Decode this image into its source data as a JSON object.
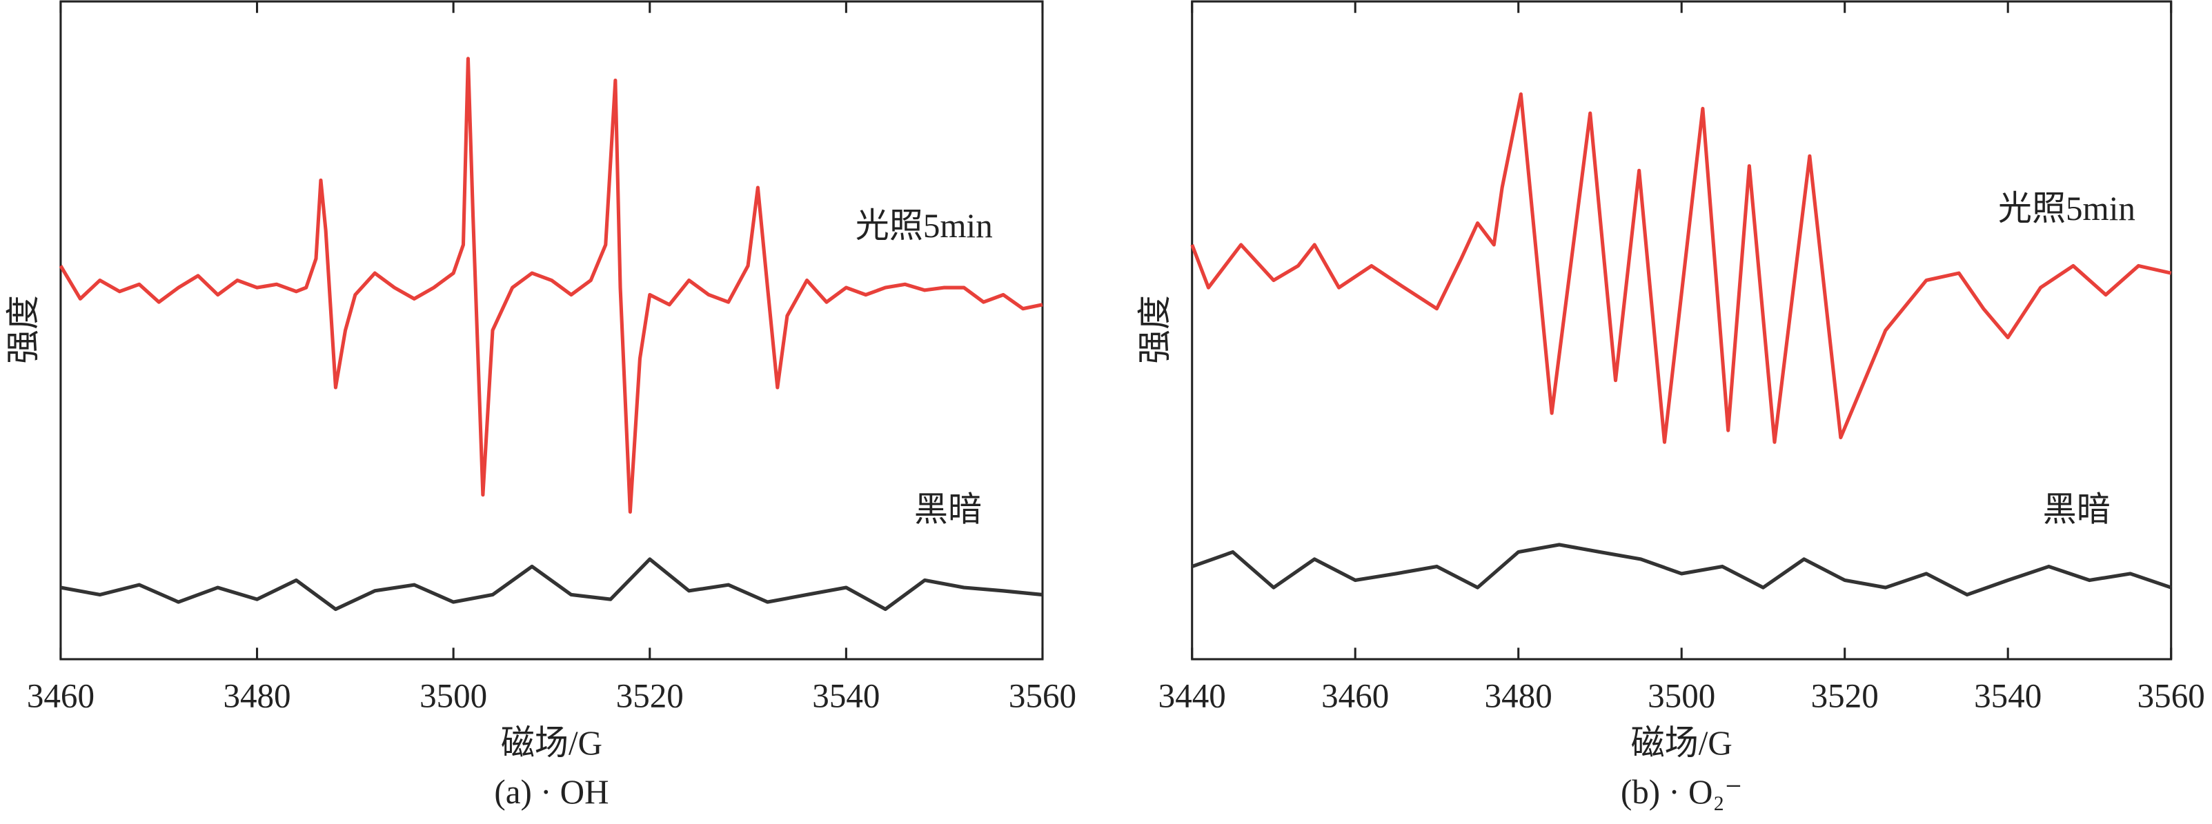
{
  "chart_data": [
    {
      "type": "line",
      "title": "(a) · OH",
      "x_label": "磁场/G",
      "y_label": "强度",
      "xlim": [
        3460,
        3560
      ],
      "ylim": [
        0,
        100
      ],
      "xticks": [
        3460,
        3480,
        3500,
        3520,
        3540,
        3560
      ],
      "series": [
        {
          "name": "光照5min",
          "color": "#e8403a",
          "x": [
            3460,
            3462,
            3464,
            3466,
            3468,
            3470,
            3472,
            3474,
            3476,
            3478,
            3480,
            3482,
            3484,
            3485,
            3486,
            3486.5,
            3487,
            3488,
            3489,
            3490,
            3492,
            3494,
            3496,
            3498,
            3500,
            3501,
            3501.5,
            3502,
            3503,
            3504,
            3506,
            3508,
            3510,
            3512,
            3514,
            3515.5,
            3516.5,
            3517,
            3518,
            3519,
            3520,
            3522,
            3524,
            3526,
            3528,
            3530,
            3531,
            3532,
            3533,
            3534,
            3536,
            3538,
            3540,
            3542,
            3544,
            3546,
            3548,
            3550,
            3552,
            3554,
            3556,
            3558,
            3560
          ],
          "values": [
            59.8,
            54.8,
            57.6,
            55.9,
            57.0,
            54.3,
            56.5,
            58.3,
            55.4,
            57.6,
            56.5,
            57.0,
            55.9,
            56.5,
            60.9,
            72.8,
            65.2,
            41.3,
            50.0,
            55.4,
            58.7,
            56.5,
            54.8,
            56.5,
            58.7,
            63.0,
            91.3,
            67.4,
            25.0,
            50.0,
            56.5,
            58.7,
            57.6,
            55.4,
            57.6,
            63.0,
            88.0,
            56.5,
            22.4,
            45.7,
            55.4,
            53.9,
            57.6,
            55.4,
            54.3,
            59.8,
            71.7,
            56.5,
            41.3,
            52.2,
            57.6,
            54.3,
            56.5,
            55.4,
            56.5,
            57.0,
            56.1,
            56.5,
            56.5,
            54.3,
            55.4,
            53.3,
            53.9
          ]
        },
        {
          "name": "黑暗",
          "color": "#333333",
          "x": [
            3460,
            3464,
            3468,
            3472,
            3476,
            3480,
            3484,
            3488,
            3492,
            3496,
            3500,
            3504,
            3508,
            3512,
            3516,
            3520,
            3524,
            3528,
            3532,
            3536,
            3540,
            3544,
            3548,
            3552,
            3556,
            3560
          ],
          "values": [
            10.9,
            9.8,
            11.3,
            8.7,
            10.9,
            9.1,
            12.0,
            7.6,
            10.4,
            11.3,
            8.7,
            9.8,
            14.1,
            9.8,
            9.1,
            15.2,
            10.4,
            11.3,
            8.7,
            9.8,
            10.9,
            7.6,
            12.0,
            10.9,
            10.4,
            9.8
          ]
        }
      ]
    },
    {
      "type": "line",
      "title": "(b) · O₂⁻",
      "x_label": "磁场/G",
      "y_label": "强度",
      "xlim": [
        3440,
        3560
      ],
      "ylim": [
        0,
        100
      ],
      "xticks": [
        3440,
        3460,
        3480,
        3500,
        3520,
        3540,
        3560
      ],
      "series": [
        {
          "name": "光照5min",
          "color": "#e8403a",
          "x": [
            3440,
            3442,
            3446,
            3450,
            3453,
            3455,
            3458,
            3462,
            3466,
            3470,
            3473,
            3475,
            3477,
            3478,
            3480.3,
            3484.1,
            3488.8,
            3491.9,
            3494.8,
            3497.9,
            3502.6,
            3505.7,
            3508.3,
            3511.4,
            3515.7,
            3519.5,
            3525,
            3530,
            3534,
            3537,
            3540,
            3544,
            3548,
            3552,
            3556,
            3560
          ],
          "values": [
            63.0,
            56.5,
            63.0,
            57.6,
            59.8,
            63.0,
            56.5,
            59.8,
            56.5,
            53.3,
            60.9,
            66.3,
            63.0,
            71.7,
            85.9,
            37.4,
            83.0,
            42.4,
            74.3,
            33.0,
            83.7,
            34.8,
            75.0,
            33.0,
            76.5,
            33.7,
            50.0,
            57.6,
            58.7,
            53.3,
            48.9,
            56.5,
            59.8,
            55.4,
            59.8,
            58.7
          ]
        },
        {
          "name": "黑暗",
          "color": "#333333",
          "x": [
            3440,
            3445,
            3450,
            3455,
            3460,
            3465,
            3470,
            3475,
            3480,
            3485,
            3490,
            3495,
            3500,
            3505,
            3510,
            3515,
            3520,
            3525,
            3530,
            3535,
            3540,
            3545,
            3550,
            3555,
            3560
          ],
          "values": [
            14.1,
            16.3,
            10.9,
            15.2,
            12.0,
            13.0,
            14.1,
            10.9,
            16.3,
            17.4,
            16.3,
            15.2,
            13.0,
            14.1,
            10.9,
            15.2,
            12.0,
            10.9,
            13.0,
            9.8,
            12.0,
            14.1,
            12.0,
            13.0,
            10.9
          ]
        }
      ]
    }
  ]
}
